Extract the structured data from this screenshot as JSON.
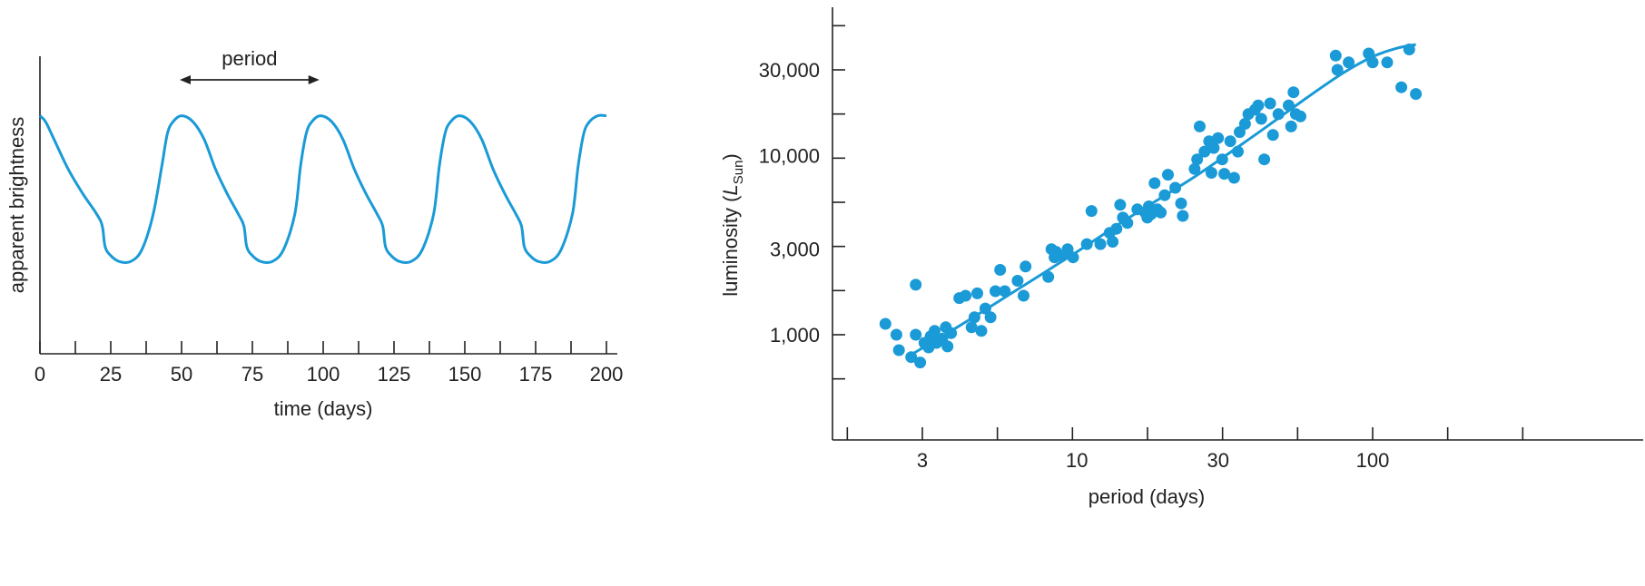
{
  "chart_data": [
    {
      "type": "line",
      "annotation": "period",
      "xlabel": "time (days)",
      "ylabel": "apparent brightness",
      "xlim": [
        0,
        200
      ],
      "x_tick_labels": [
        "0",
        "25",
        "50",
        "75",
        "100",
        "125",
        "150",
        "175",
        "200"
      ],
      "x_tick_values": [
        0,
        25,
        50,
        75,
        100,
        125,
        150,
        175,
        200
      ],
      "minor_ticks": true,
      "y_ticks": false,
      "grid": false,
      "series_color": "#1a9ad6",
      "annotation_range": [
        50,
        98
      ],
      "period_days": 49.5,
      "series": [
        {
          "x": [
            0,
            2,
            5,
            10,
            15,
            20,
            22,
            23,
            25,
            28,
            32,
            36,
            40,
            43,
            45,
            47,
            50,
            54,
            58,
            62,
            66,
            70,
            72,
            73,
            75,
            78,
            82,
            86,
            90,
            92,
            94,
            96,
            99,
            103,
            107,
            111,
            115,
            119,
            121,
            122,
            124,
            127,
            131,
            135,
            139,
            141,
            143,
            145,
            148,
            152,
            156,
            160,
            164,
            168,
            170,
            171,
            173,
            176,
            180,
            184,
            188,
            190,
            192,
            194,
            197,
            200
          ],
          "y": [
            0.8,
            0.78,
            0.72,
            0.62,
            0.54,
            0.47,
            0.43,
            0.36,
            0.33,
            0.31,
            0.31,
            0.35,
            0.47,
            0.63,
            0.74,
            0.78,
            0.8,
            0.78,
            0.72,
            0.62,
            0.54,
            0.47,
            0.43,
            0.36,
            0.33,
            0.31,
            0.31,
            0.35,
            0.47,
            0.63,
            0.74,
            0.78,
            0.8,
            0.78,
            0.72,
            0.62,
            0.54,
            0.47,
            0.43,
            0.36,
            0.33,
            0.31,
            0.31,
            0.35,
            0.47,
            0.63,
            0.74,
            0.78,
            0.8,
            0.78,
            0.72,
            0.62,
            0.54,
            0.47,
            0.43,
            0.36,
            0.33,
            0.31,
            0.31,
            0.35,
            0.47,
            0.63,
            0.74,
            0.78,
            0.8,
            0.8
          ]
        }
      ]
    },
    {
      "type": "scatter",
      "xlabel": "period (days)",
      "ylabel_main": "luminosity (",
      "ylabel_symbol": "L",
      "ylabel_subscript": "Sun",
      "ylabel_close": ")",
      "x_scale": "log",
      "y_scale": "log",
      "xlim": [
        2,
        130
      ],
      "ylim": [
        300,
        60000
      ],
      "x_tick_labels": [
        "3",
        "10",
        "30",
        "100"
      ],
      "x_tick_values": [
        3,
        10,
        30,
        100
      ],
      "y_tick_labels": [
        "1,000",
        "3,000",
        "10,000",
        "30,000"
      ],
      "y_tick_values": [
        1000,
        3000,
        10000,
        30000
      ],
      "grid": false,
      "point_color": "#1a9ad6",
      "points": [
        [
          2.25,
          1150
        ],
        [
          2.45,
          1000
        ],
        [
          2.5,
          820
        ],
        [
          2.75,
          750
        ],
        [
          2.85,
          1000
        ],
        [
          2.85,
          1900
        ],
        [
          2.95,
          700
        ],
        [
          3.05,
          900
        ],
        [
          3.15,
          850
        ],
        [
          3.2,
          980
        ],
        [
          3.3,
          1050
        ],
        [
          3.35,
          900
        ],
        [
          3.5,
          950
        ],
        [
          3.65,
          860
        ],
        [
          3.6,
          1100
        ],
        [
          3.75,
          1020
        ],
        [
          4.0,
          1600
        ],
        [
          4.2,
          1650
        ],
        [
          4.4,
          1100
        ],
        [
          4.5,
          1250
        ],
        [
          4.6,
          1700
        ],
        [
          4.75,
          1050
        ],
        [
          4.9,
          1400
        ],
        [
          5.1,
          1250
        ],
        [
          5.3,
          1750
        ],
        [
          5.5,
          2300
        ],
        [
          5.7,
          1750
        ],
        [
          6.3,
          2000
        ],
        [
          6.6,
          1650
        ],
        [
          6.7,
          2400
        ],
        [
          8.0,
          2100
        ],
        [
          8.2,
          3000
        ],
        [
          8.4,
          2700
        ],
        [
          8.5,
          2900
        ],
        [
          8.9,
          2750
        ],
        [
          9.3,
          3000
        ],
        [
          9.7,
          2700
        ],
        [
          10.8,
          3200
        ],
        [
          11.2,
          4900
        ],
        [
          12.0,
          3200
        ],
        [
          12.9,
          3700
        ],
        [
          13.2,
          3300
        ],
        [
          13.6,
          3900
        ],
        [
          14.0,
          5300
        ],
        [
          14.3,
          4500
        ],
        [
          14.8,
          4200
        ],
        [
          16.0,
          5000
        ],
        [
          17.0,
          4800
        ],
        [
          17.3,
          4500
        ],
        [
          17.5,
          5200
        ],
        [
          17.8,
          4700
        ],
        [
          18.3,
          7000
        ],
        [
          18.7,
          5000
        ],
        [
          19.2,
          4800
        ],
        [
          19.8,
          6000
        ],
        [
          20.3,
          7800
        ],
        [
          21.5,
          6600
        ],
        [
          22.5,
          5400
        ],
        [
          22.8,
          4600
        ],
        [
          25.0,
          8400
        ],
        [
          25.5,
          9500
        ],
        [
          26.0,
          14500
        ],
        [
          27.0,
          10500
        ],
        [
          28.0,
          12000
        ],
        [
          28.5,
          8000
        ],
        [
          29.0,
          11000
        ],
        [
          30.0,
          12500
        ],
        [
          31.0,
          9500
        ],
        [
          31.5,
          7900
        ],
        [
          33.0,
          12000
        ],
        [
          34.0,
          7500
        ],
        [
          35.0,
          10500
        ],
        [
          35.5,
          13500
        ],
        [
          37.0,
          15000
        ],
        [
          38.0,
          17000
        ],
        [
          40.0,
          18000
        ],
        [
          41.0,
          19000
        ],
        [
          42.0,
          16000
        ],
        [
          43.0,
          9500
        ],
        [
          45.0,
          19500
        ],
        [
          46.0,
          13000
        ],
        [
          48.0,
          17000
        ],
        [
          52.0,
          19000
        ],
        [
          53.0,
          14500
        ],
        [
          54.0,
          22500
        ],
        [
          55.0,
          17000
        ],
        [
          57.0,
          16500
        ],
        [
          75.0,
          36000
        ],
        [
          76.0,
          30000
        ],
        [
          83.0,
          33000
        ],
        [
          97.0,
          37000
        ],
        [
          100.0,
          33000
        ],
        [
          112.0,
          33000
        ],
        [
          125.0,
          24000
        ],
        [
          133.0,
          39000
        ],
        [
          140.0,
          22000
        ]
      ],
      "fit_x": [
        2.7,
        4,
        6,
        10,
        15,
        25,
        40,
        60,
        80,
        100,
        120,
        140
      ],
      "fit_y": [
        760,
        1120,
        1700,
        2900,
        4500,
        7600,
        13000,
        21000,
        29000,
        35500,
        39500,
        41500
      ]
    }
  ]
}
